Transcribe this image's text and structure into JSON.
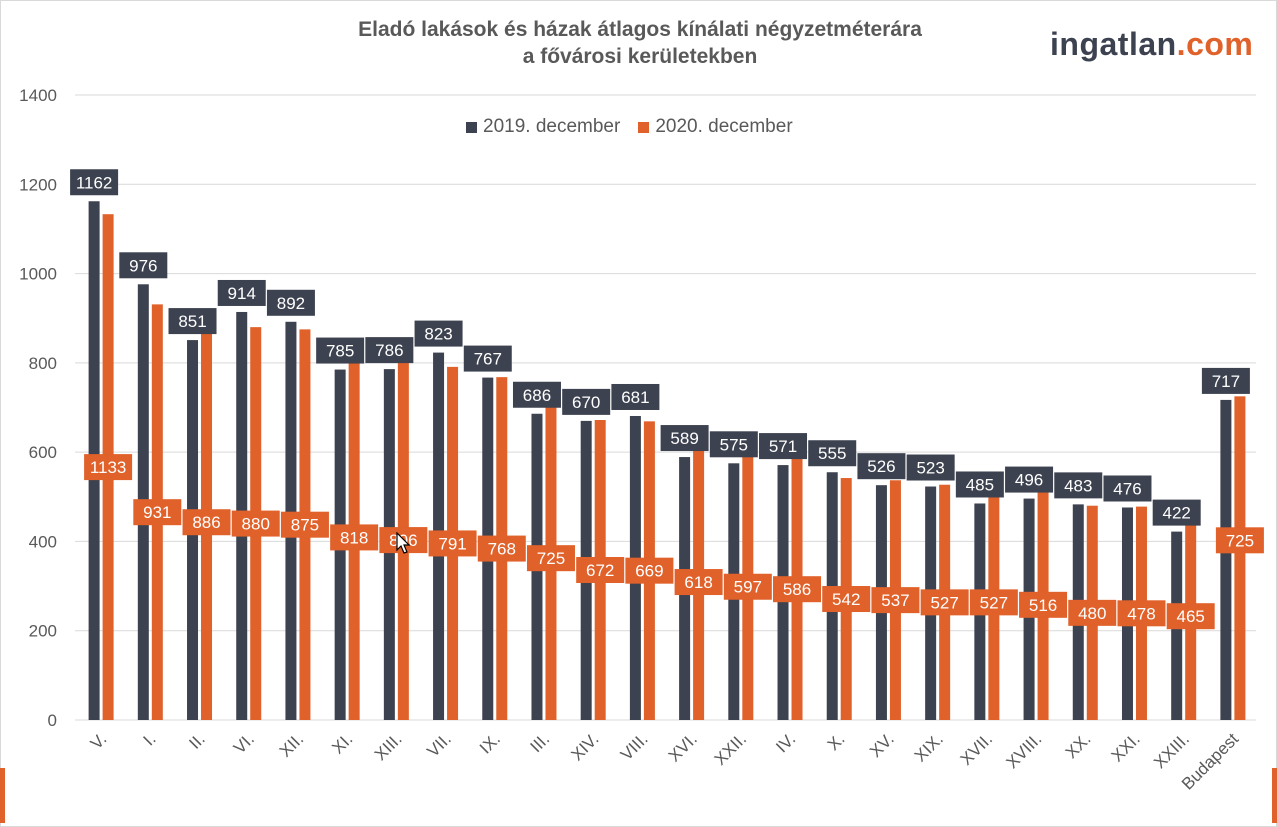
{
  "title_lines": [
    "Eladó lakások és házak átlagos kínálati négyzetméterára",
    "a fővárosi kerületekben"
  ],
  "brand": {
    "part1": "ingatlan",
    "part2": ".com"
  },
  "colors": {
    "series_2019": "#3d4250",
    "series_2020": "#e0612a",
    "grid": "#d9d9d9",
    "text": "#595959"
  },
  "chart_data": {
    "type": "bar",
    "title": "Eladó lakások és házak átlagos kínálati négyzetméterára a fővárosi kerületekben",
    "xlabel": "",
    "ylabel": "",
    "ylim": [
      0,
      1400
    ],
    "yticks": [
      0,
      200,
      400,
      600,
      800,
      1000,
      1200,
      1400
    ],
    "grid": true,
    "legend_position": "top-center",
    "categories": [
      "V.",
      "I.",
      "II.",
      "VI.",
      "XII.",
      "XI.",
      "XIII.",
      "VII.",
      "IX.",
      "III.",
      "XIV.",
      "VIII.",
      "XVI.",
      "XXII.",
      "IV.",
      "X.",
      "XV.",
      "XIX.",
      "XVII.",
      "XVIII.",
      "XX.",
      "XXI.",
      "XXIII.",
      "Budapest"
    ],
    "series": [
      {
        "name": "2019. december",
        "color": "#3d4250",
        "values": [
          1162,
          976,
          851,
          914,
          892,
          785,
          786,
          823,
          767,
          686,
          670,
          681,
          589,
          575,
          571,
          555,
          526,
          523,
          485,
          496,
          483,
          476,
          422,
          717
        ]
      },
      {
        "name": "2020. december",
        "color": "#e0612a",
        "values": [
          1133,
          931,
          886,
          880,
          875,
          818,
          806,
          791,
          768,
          725,
          672,
          669,
          618,
          597,
          586,
          542,
          537,
          527,
          527,
          516,
          480,
          478,
          465,
          725
        ]
      }
    ]
  }
}
